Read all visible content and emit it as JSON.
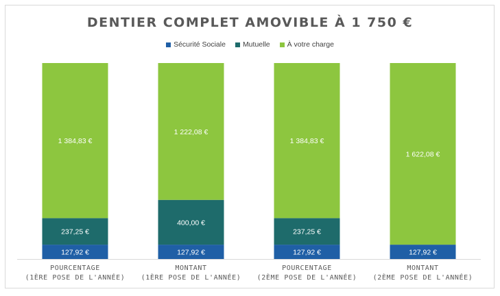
{
  "chart_data": {
    "type": "bar",
    "stacked": true,
    "percent_stacked": true,
    "title": "DENTIER COMPLET AMOVIBLE À 1 750 €",
    "categories": [
      [
        "POURCENTAGE",
        "(1ÈRE POSE DE L'ANNÉE)"
      ],
      [
        "MONTANT",
        "(1ÈRE POSE DE L'ANNÉE)"
      ],
      [
        "POURCENTAGE",
        "(2ÈME POSE DE L'ANNÉE)"
      ],
      [
        "MONTANT",
        "(2ÈME POSE DE L'ANNÉE)"
      ]
    ],
    "series": [
      {
        "name": "Sécurité Sociale",
        "color": "#1f5fa6",
        "values": [
          127.92,
          127.92,
          127.92,
          127.92
        ],
        "labels": [
          "127,92 €",
          "127,92 €",
          "127,92 €",
          "127,92 €"
        ]
      },
      {
        "name": "Mutuelle",
        "color": "#1e6b6b",
        "values": [
          237.25,
          400.0,
          237.25,
          0
        ],
        "labels": [
          "237,25 €",
          "400,00 €",
          "237,25 €",
          ""
        ]
      },
      {
        "name": "À votre charge",
        "color": "#8dc63f",
        "values": [
          1384.83,
          1222.08,
          1384.83,
          1622.08
        ],
        "labels": [
          "1 384,83 €",
          "1 222,08 €",
          "1 384,83 €",
          "1 622,08 €"
        ]
      }
    ],
    "legend_position": "top",
    "grid": false
  }
}
